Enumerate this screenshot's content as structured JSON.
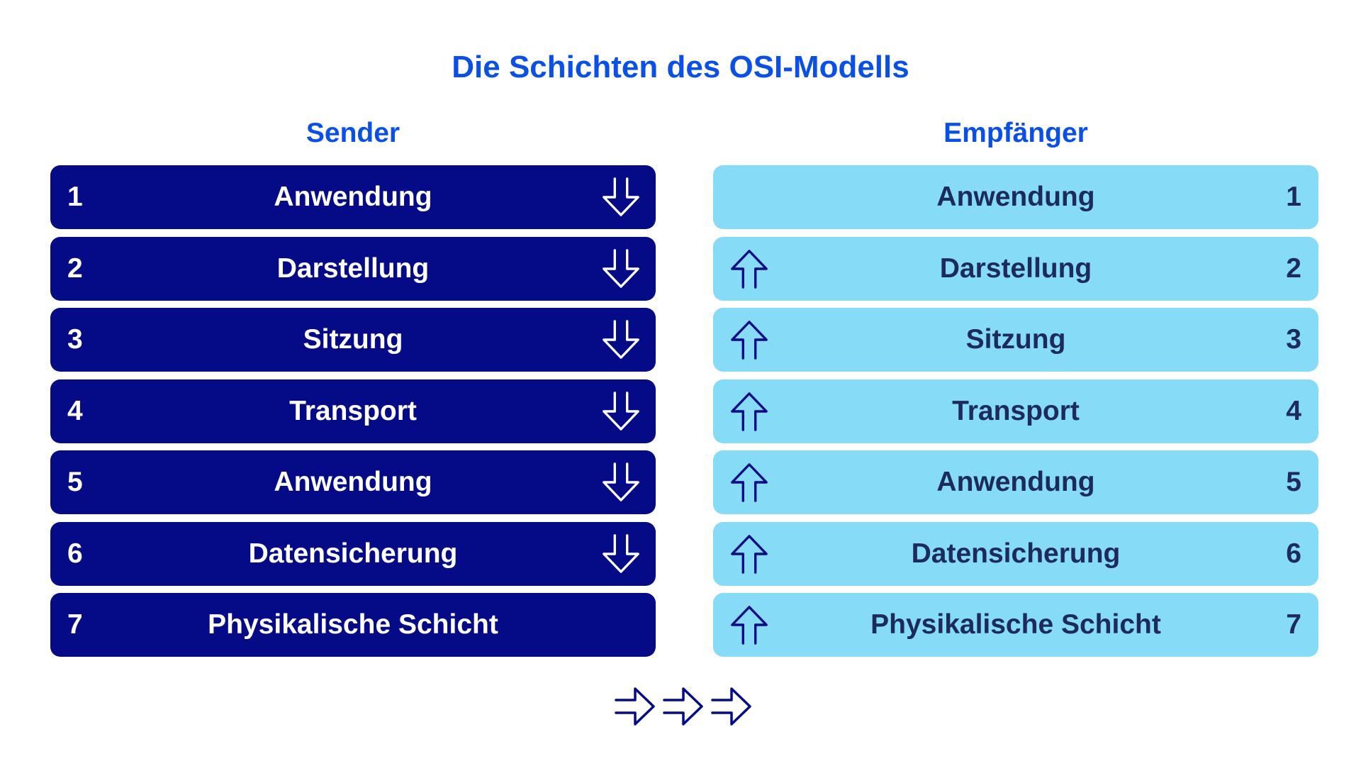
{
  "title": "Die Schichten des OSI-Modells",
  "colors": {
    "accent": "#0a50e6",
    "sender_bg": "#050a87",
    "receiver_bg": "#86dcf6",
    "receiver_text": "#1c2a5c"
  },
  "sender": {
    "heading": "Sender",
    "layers": [
      {
        "num": "1",
        "label": "Anwendung",
        "arrow": "arrow-down-icon"
      },
      {
        "num": "2",
        "label": "Darstellung",
        "arrow": "arrow-down-icon"
      },
      {
        "num": "3",
        "label": "Sitzung",
        "arrow": "arrow-down-icon"
      },
      {
        "num": "4",
        "label": "Transport",
        "arrow": "arrow-down-icon"
      },
      {
        "num": "5",
        "label": "Anwendung",
        "arrow": "arrow-down-icon"
      },
      {
        "num": "6",
        "label": "Datensicherung",
        "arrow": "arrow-down-icon"
      },
      {
        "num": "7",
        "label": "Physikalische Schicht",
        "arrow": ""
      }
    ]
  },
  "receiver": {
    "heading": "Empfänger",
    "layers": [
      {
        "num": "1",
        "label": "Anwendung",
        "arrow": ""
      },
      {
        "num": "2",
        "label": "Darstellung",
        "arrow": "arrow-up-icon"
      },
      {
        "num": "3",
        "label": "Sitzung",
        "arrow": "arrow-up-icon"
      },
      {
        "num": "4",
        "label": "Transport",
        "arrow": "arrow-up-icon"
      },
      {
        "num": "5",
        "label": "Anwendung",
        "arrow": "arrow-up-icon"
      },
      {
        "num": "6",
        "label": "Datensicherung",
        "arrow": "arrow-up-icon"
      },
      {
        "num": "7",
        "label": "Physikalische Schicht",
        "arrow": "arrow-up-icon"
      }
    ]
  },
  "transfer_arrows": [
    "arrow-right-icon",
    "arrow-right-icon",
    "arrow-right-icon"
  ]
}
